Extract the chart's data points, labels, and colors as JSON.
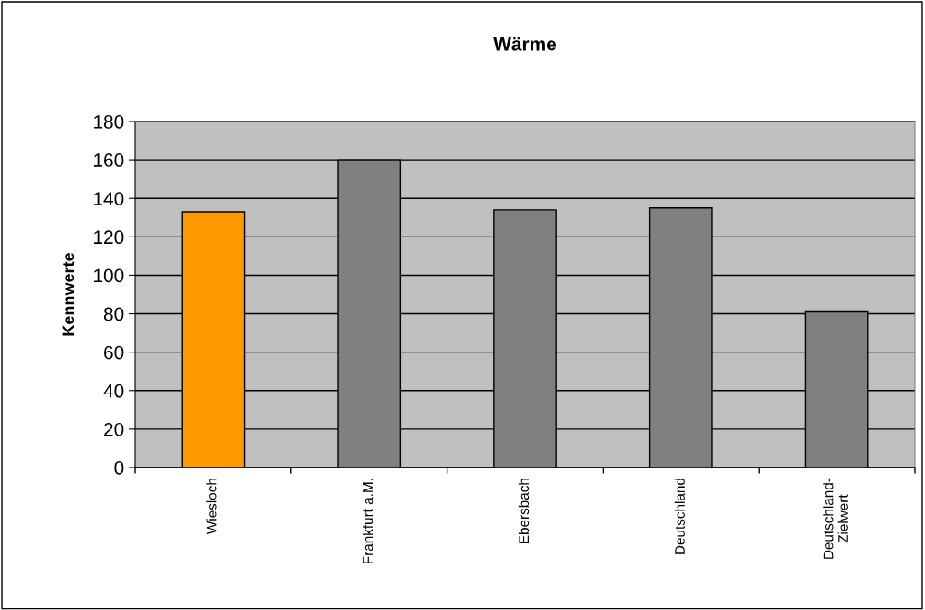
{
  "chart_data": {
    "type": "bar",
    "title": "Wärme",
    "ylabel": "Kennwerte",
    "categories": [
      "Wiesloch",
      "Frankfurt a.M.",
      "Ebersbach",
      "Deutschland",
      "Deutschland-\nZielwert"
    ],
    "values": [
      133,
      160,
      134,
      135,
      81
    ],
    "colors": [
      "#ff9900",
      "#808080",
      "#808080",
      "#808080",
      "#808080"
    ],
    "ylim": [
      0,
      180
    ],
    "yticks": [
      0,
      20,
      40,
      60,
      80,
      100,
      120,
      140,
      160,
      180
    ],
    "grid": "y",
    "legend": false
  }
}
